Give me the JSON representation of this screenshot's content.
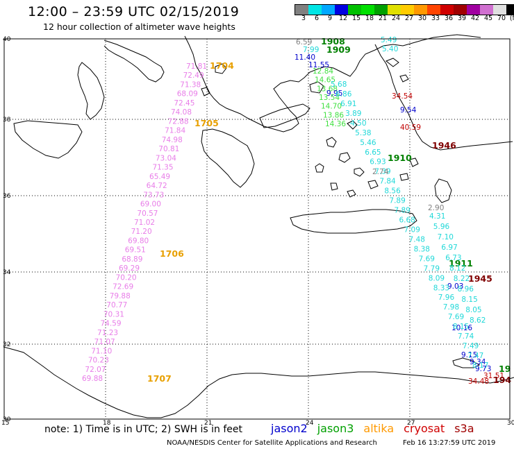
{
  "title": "12:00 – 23:59 UTC 02/15/2019",
  "subtitle": "12 hour collection of altimeter wave heights",
  "legend": {
    "colors": [
      "#808080",
      "#00e5e5",
      "#00a8ff",
      "#0000e0",
      "#00c000",
      "#00e000",
      "#00a000",
      "#e0e000",
      "#ffcc00",
      "#ff9900",
      "#ff4400",
      "#d00000",
      "#a00000",
      "#a000a0",
      "#d070d0",
      "#e0e0e0",
      "#000000"
    ],
    "labels": [
      "3",
      "6",
      "9",
      "12",
      "15",
      "18",
      "21",
      "24",
      "27",
      "30",
      "33",
      "36",
      "39",
      "42",
      "45",
      "70",
      "(ft)"
    ]
  },
  "axes": {
    "lat_ticks": [
      "40",
      "38",
      "36",
      "34",
      "32",
      "30"
    ],
    "lon_ticks": [
      "15",
      "18",
      "21",
      "24",
      "27",
      "30"
    ]
  },
  "tracks": [
    {
      "name": "altika",
      "color": "#e87de8",
      "time_labels": [
        "1704",
        "1705",
        "1706",
        "1707"
      ],
      "time_color": "#e8a000",
      "values": [
        "71.81",
        "72.49",
        "71.38",
        "68.09",
        "72.45",
        "74.08",
        "72.88",
        "71.84",
        "74.98",
        "70.81",
        "73.04",
        "71.35",
        "65.49",
        "64.72",
        "73.73",
        "69.00",
        "70.57",
        "71.02",
        "71.20",
        "69.80",
        "69.51",
        "68.89",
        "69.29",
        "70.20",
        "72.69",
        "79.88",
        "70.77",
        "70.31",
        "74.59",
        "71.23",
        "71.07",
        "71.10",
        "70.23",
        "72.07",
        "69.88"
      ]
    },
    {
      "name": "jason3",
      "color": "#40e040",
      "time_labels": [
        "1908",
        "1909",
        "1910",
        "1911"
      ],
      "time_color": "#008000",
      "values": [
        "12.84",
        "14.65",
        "13.68",
        "13.54",
        "14.70",
        "13.86",
        "14.36"
      ]
    },
    {
      "name": "jason2",
      "color": "#0000cc",
      "time_labels": [],
      "time_color": "#0000cc",
      "values": [
        "11.40",
        "11.55",
        "9.95",
        "9.54",
        "9.03",
        "10.16",
        "9.15",
        "9.34",
        "9.73"
      ]
    },
    {
      "name": "cryosat",
      "color": "#c00000",
      "time_labels": [
        "1945",
        "1946",
        "194"
      ],
      "time_color": "#800000",
      "values": [
        "34.54",
        "40.59",
        "34.48",
        "31.51"
      ]
    },
    {
      "name": "s3a",
      "color": "#20d8d8",
      "time_labels": [
        "19"
      ],
      "time_color": "#008000",
      "values": [
        "5.49",
        "5.40",
        "7.99",
        "5.68",
        "6.86",
        "6.91",
        "3.89",
        "4.50",
        "5.38",
        "5.46",
        "6.65",
        "6.93",
        "7.39",
        "7.84",
        "8.56",
        "7.89",
        "7.89",
        "6.68",
        "7.09",
        "7.48",
        "8.38",
        "7.69",
        "7.79",
        "8.09",
        "8.33",
        "7.96",
        "7.98",
        "7.69",
        "8.15",
        "7.74",
        "7.49",
        "7.47",
        "8.17",
        "4.31",
        "5.96",
        "7.10",
        "6.97",
        "6.73",
        "8.12",
        "8.22",
        "8.96",
        "8.15",
        "8.05",
        "8.62"
      ]
    },
    {
      "name": "gray",
      "color": "#808080",
      "time_labels": [],
      "time_color": "#808080",
      "values": [
        "6.59",
        "2.74",
        "2.90"
      ]
    }
  ],
  "footer": {
    "note": "note: 1) Time is in UTC; 2) SWH is in feet",
    "satellites": [
      {
        "name": "jason2",
        "color": "#0000cc"
      },
      {
        "name": "jason3",
        "color": "#00a000"
      },
      {
        "name": "altika",
        "color": "#ff9900"
      },
      {
        "name": "cryosat",
        "color": "#d00000"
      },
      {
        "name": "s3a",
        "color": "#a00000"
      }
    ],
    "credit": "NOAA/NESDIS Center for Satellite Applications and Research",
    "timestamp": "Feb 16 13:27:59 UTC 2019"
  }
}
